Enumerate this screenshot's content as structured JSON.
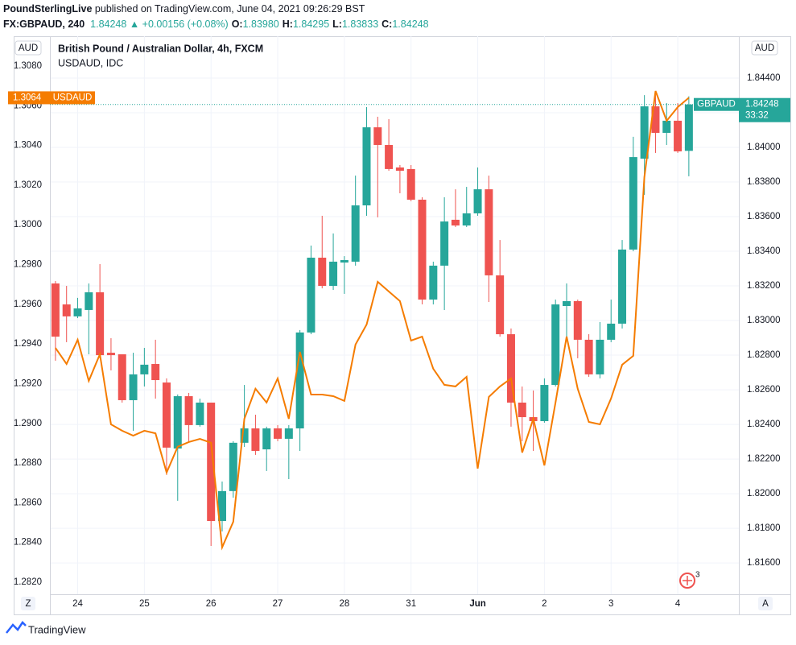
{
  "header": {
    "author": "PoundSterlingLive",
    "published": "published on TradingView.com, June 04, 2021 09:26:29 BST",
    "symbol": "FX:GBPAUD, 240",
    "last": "1.84248",
    "change": "▲ +0.00156 (+0.08%)",
    "ohlc": [
      {
        "label": "O:",
        "value": "1.83980"
      },
      {
        "label": "H:",
        "value": "1.84295"
      },
      {
        "label": "L:",
        "value": "1.83833"
      },
      {
        "label": "C:",
        "value": "1.84248"
      }
    ]
  },
  "chart_data": {
    "type": "candlestick",
    "title": "British Pound / Australian Dollar, 4h, FXCM",
    "y_unit": "AUD",
    "y2_unit": "AUD",
    "candle_name": "GBPAUD",
    "countdown": "33:32",
    "up_color": "#26a69a",
    "down_color": "#ef5350",
    "grid": true,
    "open": [
      1.83214,
      1.83093,
      1.83024,
      1.83061,
      1.83163,
      1.82814,
      1.82805,
      1.8254,
      1.82689,
      1.82749,
      1.82642,
      1.82261,
      1.82563,
      1.82396,
      1.82526,
      1.81842,
      1.82015,
      1.82294,
      1.82377,
      1.82256,
      1.82377,
      1.82317,
      1.82377,
      1.82931,
      1.83363,
      1.832,
      1.83335,
      1.8334,
      1.83665,
      1.84116,
      1.84014,
      1.83884,
      1.83875,
      1.83698,
      1.83121,
      1.83317,
      1.83582,
      1.83549,
      1.83619,
      1.83758,
      1.83261,
      1.82921,
      1.82526,
      1.82442,
      1.82419,
      1.82628,
      1.83084,
      1.83112,
      1.82889,
      1.82689,
      1.82889,
      1.82982,
      1.8341,
      1.83935,
      1.84237,
      1.84084,
      1.84154,
      1.8398
    ],
    "high": [
      1.83228,
      1.832,
      1.83131,
      1.83214,
      1.83326,
      1.82898,
      1.82805,
      1.82814,
      1.82842,
      1.82889,
      1.82666,
      1.82573,
      1.82582,
      1.82549,
      1.82526,
      1.8207,
      1.82303,
      1.82628,
      1.82456,
      1.82387,
      1.82396,
      1.82396,
      1.82945,
      1.83433,
      1.83605,
      1.83503,
      1.83372,
      1.83837,
      1.84233,
      1.84177,
      1.84163,
      1.83898,
      1.83898,
      1.83712,
      1.8334,
      1.83712,
      1.83758,
      1.83772,
      1.83884,
      1.83837,
      1.83465,
      1.82954,
      1.82619,
      1.82596,
      1.82666,
      1.83121,
      1.83214,
      1.83121,
      1.82921,
      1.82991,
      1.83121,
      1.83465,
      1.84061,
      1.84302,
      1.84302,
      1.84256,
      1.84256,
      1.84295
    ],
    "low": [
      1.82768,
      1.82875,
      1.83014,
      1.82805,
      1.82782,
      1.82712,
      1.82526,
      1.82363,
      1.82619,
      1.82549,
      1.82108,
      1.81959,
      1.82303,
      1.82387,
      1.81698,
      1.81782,
      1.81977,
      1.8227,
      1.82224,
      1.82131,
      1.82303,
      1.82084,
      1.82247,
      1.82921,
      1.83186,
      1.83177,
      1.83154,
      1.83317,
      1.83605,
      1.83596,
      1.83865,
      1.83735,
      1.83689,
      1.83093,
      1.83093,
      1.83061,
      1.8354,
      1.8354,
      1.83605,
      1.83107,
      1.82907,
      1.82387,
      1.82303,
      1.82247,
      1.8241,
      1.82619,
      1.82898,
      1.82782,
      1.82675,
      1.82666,
      1.82875,
      1.82954,
      1.834,
      1.83726,
      1.83968,
      1.84014,
      1.83968,
      1.83833
    ],
    "close": [
      1.82907,
      1.83024,
      1.8307,
      1.83163,
      1.828,
      1.828,
      1.8254,
      1.82689,
      1.82745,
      1.82656,
      1.82266,
      1.82563,
      1.82396,
      1.82526,
      1.81842,
      1.82015,
      1.82294,
      1.82377,
      1.82247,
      1.82377,
      1.82317,
      1.82377,
      1.82931,
      1.83363,
      1.832,
      1.8334,
      1.83349,
      1.83665,
      1.84116,
      1.84014,
      1.83875,
      1.83865,
      1.83698,
      1.83121,
      1.83317,
      1.83572,
      1.83549,
      1.83619,
      1.83758,
      1.83261,
      1.82921,
      1.82526,
      1.82442,
      1.82419,
      1.82628,
      1.83093,
      1.83112,
      1.82889,
      1.82689,
      1.82889,
      1.82982,
      1.8341,
      1.83944,
      1.84237,
      1.84084,
      1.84154,
      1.83977,
      1.84248
    ],
    "series": [
      {
        "name": "USDAUD, IDC",
        "label": "USDAUD",
        "color": "#f57c00",
        "axis": "y2",
        "values": [
          1.2938,
          1.29299,
          1.29421,
          1.29214,
          1.29348,
          1.28995,
          1.28963,
          1.28938,
          1.28963,
          1.2895,
          1.28752,
          1.28882,
          1.28906,
          1.28922,
          1.28902,
          1.28375,
          1.28504,
          1.29023,
          1.29174,
          1.29105,
          1.29226,
          1.29023,
          1.2936,
          1.29145,
          1.29145,
          1.29137,
          1.29113,
          1.29397,
          1.29498,
          1.29713,
          1.29664,
          1.29616,
          1.29417,
          1.29437,
          1.29275,
          1.29194,
          1.29186,
          1.29234,
          1.28772,
          1.29133,
          1.29186,
          1.29226,
          1.28853,
          1.29023,
          1.28788,
          1.29105,
          1.29437,
          1.29174,
          1.29007,
          1.28995,
          1.29125,
          1.29295,
          1.2934,
          1.3024,
          1.30674,
          1.30524,
          1.30593,
          1.3064
        ]
      }
    ],
    "xlim": [
      -0.5,
      61.5
    ],
    "xticks": [
      {
        "value": 2,
        "label": "24"
      },
      {
        "value": 8,
        "label": "25"
      },
      {
        "value": 14,
        "label": "26"
      },
      {
        "value": 20,
        "label": "27"
      },
      {
        "value": 26,
        "label": "28"
      },
      {
        "value": 32,
        "label": "31"
      },
      {
        "value": 38,
        "label": "Jun"
      },
      {
        "value": 44,
        "label": "2"
      },
      {
        "value": 50,
        "label": "3"
      },
      {
        "value": 56,
        "label": "4"
      }
    ],
    "ylim": [
      1.81419,
      1.84642
    ],
    "yticks": [
      {
        "value": 1.816,
        "label": "1.81600"
      },
      {
        "value": 1.818,
        "label": "1.81800"
      },
      {
        "value": 1.82,
        "label": "1.82000"
      },
      {
        "value": 1.822,
        "label": "1.82200"
      },
      {
        "value": 1.824,
        "label": "1.82400"
      },
      {
        "value": 1.826,
        "label": "1.82600"
      },
      {
        "value": 1.828,
        "label": "1.82800"
      },
      {
        "value": 1.83,
        "label": "1.83000"
      },
      {
        "value": 1.832,
        "label": "1.83200"
      },
      {
        "value": 1.834,
        "label": "1.83400"
      },
      {
        "value": 1.836,
        "label": "1.83600"
      },
      {
        "value": 1.838,
        "label": "1.83800"
      },
      {
        "value": 1.84,
        "label": "1.84000"
      },
      {
        "value": 1.842,
        "label": "1.84200"
      },
      {
        "value": 1.844,
        "label": "1.84400"
      }
    ],
    "y2lim": [
      1.28139,
      1.3095
    ],
    "y2ticks": [
      {
        "value": 1.282,
        "label": "1.2820"
      },
      {
        "value": 1.284,
        "label": "1.2840"
      },
      {
        "value": 1.286,
        "label": "1.2860"
      },
      {
        "value": 1.288,
        "label": "1.2880"
      },
      {
        "value": 1.29,
        "label": "1.2900"
      },
      {
        "value": 1.292,
        "label": "1.2920"
      },
      {
        "value": 1.294,
        "label": "1.2940"
      },
      {
        "value": 1.296,
        "label": "1.2960"
      },
      {
        "value": 1.298,
        "label": "1.2980"
      },
      {
        "value": 1.3,
        "label": "1.3000"
      },
      {
        "value": 1.302,
        "label": "1.3020"
      },
      {
        "value": 1.304,
        "label": "1.3040"
      },
      {
        "value": 1.306,
        "label": "1.3060"
      },
      {
        "value": 1.308,
        "label": "1.3080"
      }
    ]
  },
  "footer": {
    "left_button": "Z",
    "right_button": "A",
    "brand": "TradingView",
    "indicator_badge": "3"
  }
}
